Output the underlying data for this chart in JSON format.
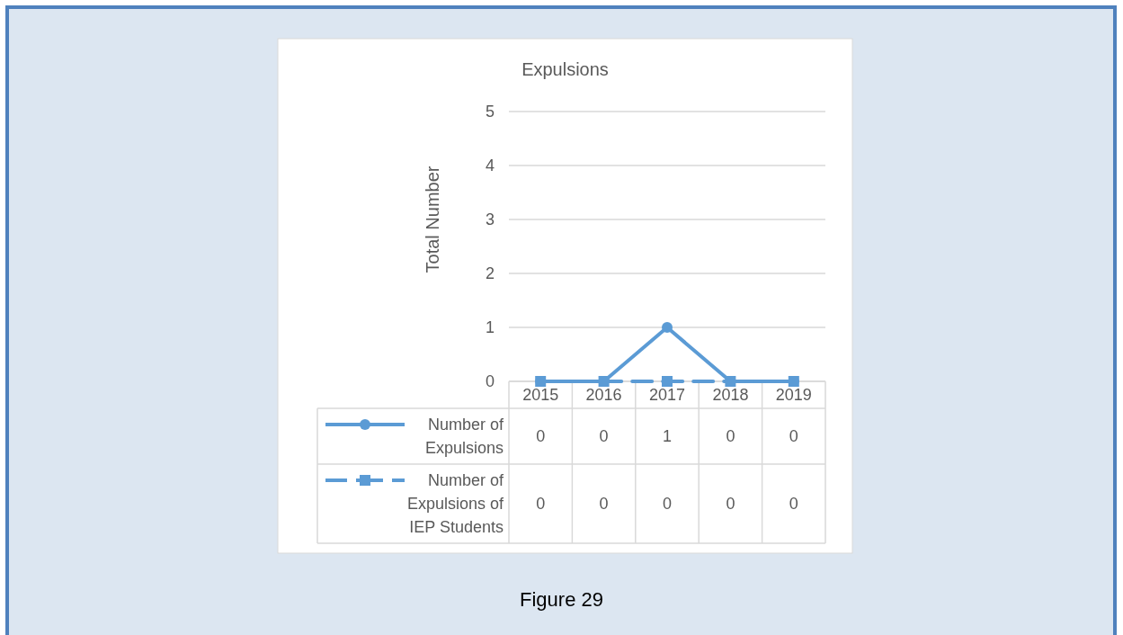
{
  "chart_data": {
    "type": "line",
    "title": "Expulsions",
    "ylabel": "Total Number",
    "categories": [
      "2015",
      "2016",
      "2017",
      "2018",
      "2019"
    ],
    "series": [
      {
        "name": "Number of Expulsions",
        "color": "#5b9bd5",
        "values": [
          0,
          0,
          1,
          0,
          0
        ],
        "marker": "circle",
        "line_style": "solid"
      },
      {
        "name": "Number of Expulsions of IEP Students",
        "color": "#5b9bd5",
        "values": [
          0,
          0,
          0,
          0,
          0
        ],
        "marker": "square",
        "line_style": "dashed"
      }
    ],
    "ylim": [
      0,
      5
    ],
    "yticks": [
      0,
      1,
      2,
      3,
      4,
      5
    ],
    "grid": "y",
    "legend": "bottom",
    "data_labels": true,
    "annotations": [
      "Figure 29"
    ]
  }
}
